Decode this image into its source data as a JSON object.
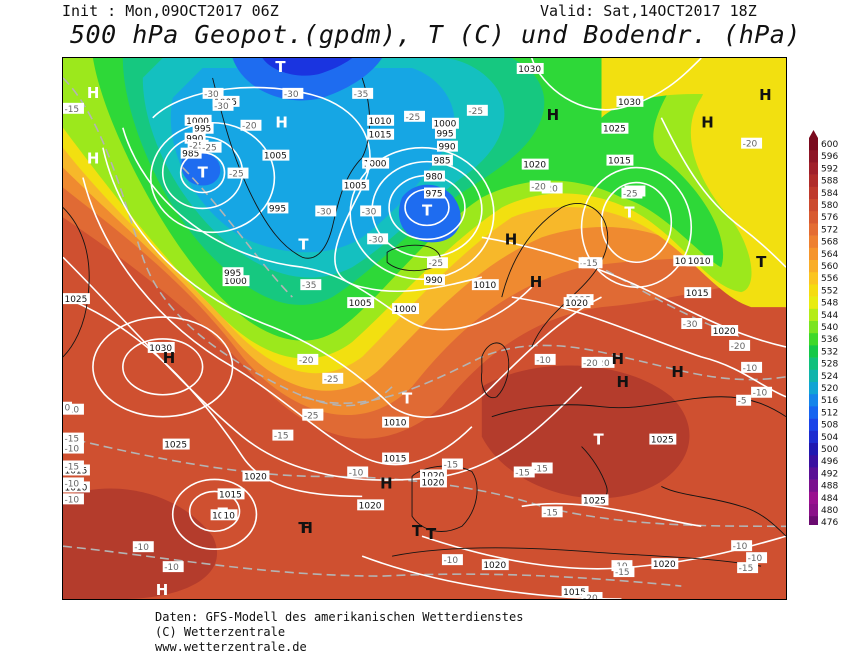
{
  "header": {
    "init": "Init : Mon,09OCT2017 06Z",
    "valid": "Valid: Sat,14OCT2017 18Z",
    "title": "500 hPa Geopot.(gpdm), T (C) und Bodendr. (hPa)"
  },
  "footer": {
    "line1": "Daten: GFS-Modell des amerikanischen Wetterdienstes",
    "line2": "(C) Wetterzentrale",
    "line3": "www.wetterzentrale.de"
  },
  "legend": {
    "levels": [
      "600",
      "596",
      "592",
      "588",
      "584",
      "580",
      "576",
      "572",
      "568",
      "564",
      "560",
      "556",
      "552",
      "548",
      "544",
      "540",
      "536",
      "532",
      "528",
      "524",
      "520",
      "516",
      "512",
      "508",
      "504",
      "500",
      "496",
      "492",
      "488",
      "484",
      "480",
      "476"
    ],
    "colors": [
      "#7a0a1e",
      "#8e1626",
      "#a0202a",
      "#b02c2a",
      "#bf3a2c",
      "#cc4a2e",
      "#d85a30",
      "#e46c32",
      "#ee8030",
      "#f5952c",
      "#f9ad28",
      "#fbc520",
      "#f5dc10",
      "#e8ec10",
      "#b4ec18",
      "#7ae420",
      "#3ed82a",
      "#14c848",
      "#10c07c",
      "#10b4ac",
      "#10a4d4",
      "#1484ea",
      "#1664f0",
      "#1a44e8",
      "#1c2cd0",
      "#2018b0",
      "#3a10a0",
      "#5a1096",
      "#7a108e",
      "#9a1090",
      "#8a1088",
      "#6a0a70"
    ]
  },
  "map": {
    "colors": {
      "lowest": "#1a34e0",
      "deep_blue": "#1e6cf0",
      "blue": "#16a6e4",
      "cyan": "#14c0c0",
      "teal": "#16c880",
      "green": "#2ed838",
      "yellow_green": "#9ce81c",
      "yellow": "#f2e010",
      "amber": "#f7b82a",
      "orange": "#ef8a30",
      "orange_red": "#e06a34",
      "red": "#cf5030",
      "dark_red": "#b43c2c",
      "contour": "#ffffff",
      "isotherm": "#b4b4b4",
      "coast": "#141414"
    },
    "pressure_systems": [
      {
        "symbol": "H",
        "color": "white"
      },
      {
        "symbol": "H",
        "color": "white"
      },
      {
        "symbol": "T",
        "color": "white"
      },
      {
        "symbol": "T",
        "color": "white"
      },
      {
        "symbol": "H",
        "color": "white"
      },
      {
        "symbol": "T",
        "color": "white"
      },
      {
        "symbol": "T",
        "color": "white"
      },
      {
        "symbol": "T",
        "color": "white"
      },
      {
        "symbol": "T",
        "color": "white"
      },
      {
        "symbol": "H",
        "color": "black"
      },
      {
        "symbol": "H",
        "color": "black"
      },
      {
        "symbol": "H",
        "color": "black"
      },
      {
        "symbol": "H",
        "color": "black"
      },
      {
        "symbol": "H",
        "color": "black"
      },
      {
        "symbol": "H",
        "color": "black"
      },
      {
        "symbol": "T",
        "color": "white"
      },
      {
        "symbol": "T",
        "color": "black"
      },
      {
        "symbol": "T",
        "color": "black"
      },
      {
        "symbol": "H",
        "color": "black"
      },
      {
        "symbol": "H",
        "color": "black"
      },
      {
        "symbol": "T",
        "color": "white"
      },
      {
        "symbol": "H",
        "color": "black"
      },
      {
        "symbol": "H",
        "color": "black"
      },
      {
        "symbol": "T",
        "color": "black"
      },
      {
        "symbol": "T",
        "color": "white"
      },
      {
        "symbol": "T",
        "color": "black"
      },
      {
        "symbol": "H",
        "color": "black"
      },
      {
        "symbol": "H",
        "color": "white"
      }
    ],
    "isobar_labels": [
      "1005",
      "1000",
      "995",
      "990",
      "985",
      "1005",
      "1010",
      "1015",
      "1000",
      "995",
      "990",
      "1005",
      "985",
      "980",
      "975",
      "995",
      "1000",
      "1000",
      "995",
      "990",
      "1005",
      "1000",
      "1010",
      "1015",
      "1020",
      "1025",
      "1015",
      "1010",
      "1020",
      "1025",
      "1030",
      "1030",
      "1030",
      "1025",
      "1010",
      "1015",
      "1020",
      "1025",
      "1020",
      "1020",
      "1025",
      "1020",
      "1020",
      "1015",
      "1010",
      "1020",
      "1015",
      "1025",
      "1020",
      "1010",
      "1015",
      "1010"
    ],
    "isotherm_labels": [
      "-15",
      "-25",
      "-25",
      "-20",
      "-25",
      "-30",
      "-30",
      "-35",
      "-30",
      "-25",
      "-25",
      "-30",
      "-35",
      "-20",
      "-25",
      "-20",
      "-25",
      "-15",
      "-20",
      "-25",
      "-30",
      "-30",
      "-25",
      "-20",
      "-25",
      "-20",
      "-20",
      "-15",
      "-10",
      "-15",
      "-15",
      "-15",
      "-10",
      "-10",
      "-15",
      "-10",
      "-10",
      "-15",
      "-15",
      "-15",
      "-10",
      "-10",
      "-10",
      "-10",
      "-10",
      "-10",
      "-10",
      "-15",
      "-10",
      "-15",
      "-20",
      "-20",
      "-20",
      "-30",
      "-10",
      "-5",
      "-10",
      "-10",
      "0"
    ]
  }
}
